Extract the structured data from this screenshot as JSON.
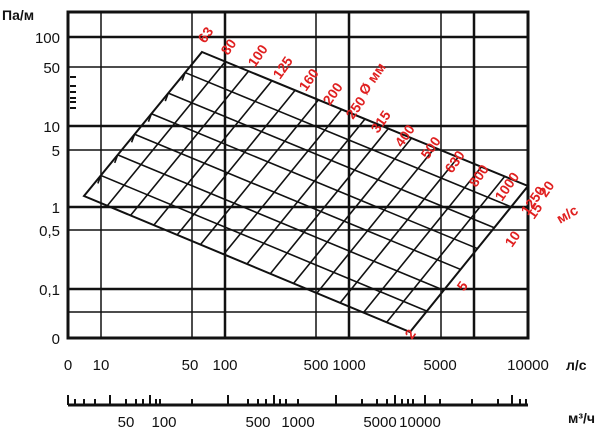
{
  "chart_data": {
    "type": "line",
    "title": "",
    "ylabel": "Па/м",
    "xlabel": "л/с",
    "x2label": "м³/ч",
    "x_scale": "log",
    "y_scale": "log",
    "y_ticks": [
      "100",
      "50",
      "10",
      "5",
      "1",
      "0,5",
      "0,1",
      "0"
    ],
    "x_ticks": [
      "0",
      "10",
      "50",
      "100",
      "500",
      "1000",
      "5000",
      "10000"
    ],
    "x2_ticks": [
      "50",
      "100",
      "500",
      "1000",
      "5000",
      "10000"
    ],
    "diameter_unit": "Ø мм",
    "velocity_unit": "м/с",
    "diameters": [
      "63",
      "80",
      "100",
      "125",
      "160",
      "200",
      "250",
      "315",
      "400",
      "500",
      "630",
      "800",
      "1000",
      "1250"
    ],
    "velocities": [
      "2",
      "5",
      "10",
      "15",
      "20"
    ],
    "grid": true,
    "corners_series": [
      {
        "name": "63",
        "x": [
          3.5,
          60
        ],
        "y": [
          1.2,
          60
        ]
      },
      {
        "name": "1250",
        "x": [
          2500,
          11000
        ],
        "y": [
          0.008,
          2
        ]
      }
    ]
  }
}
